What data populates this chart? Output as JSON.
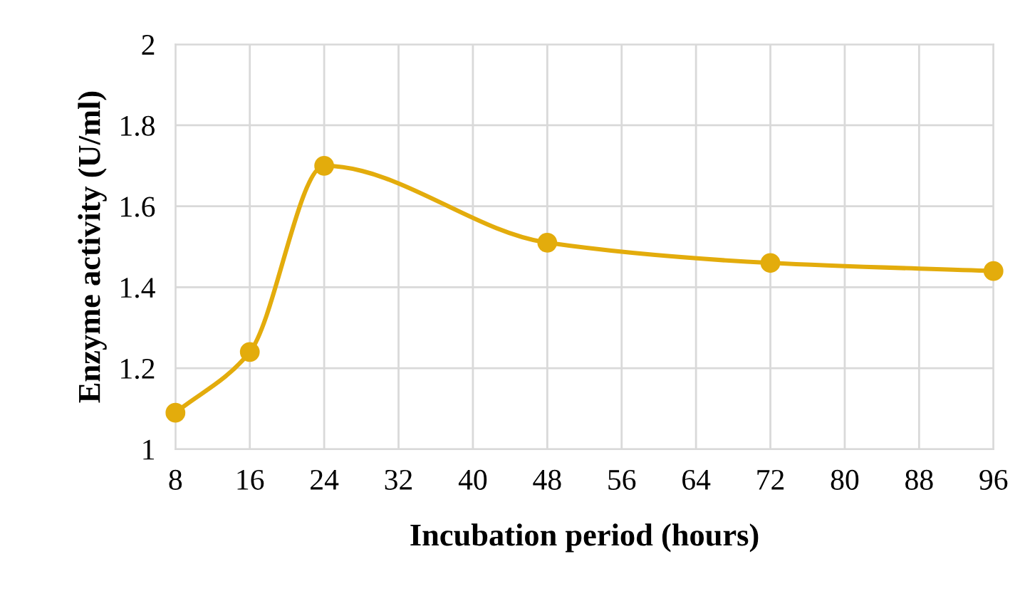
{
  "chart_data": {
    "type": "line",
    "xlabel": "Incubation period (hours)",
    "ylabel": "Enzyme activity (U/ml)",
    "x": [
      8,
      16,
      24,
      48,
      72,
      96
    ],
    "series": [
      {
        "color": "#e3ac0c",
        "values": [
          1.09,
          1.24,
          1.7,
          1.51,
          1.46,
          1.44
        ]
      }
    ],
    "xlim": [
      8,
      96
    ],
    "xticks": [
      8,
      16,
      24,
      32,
      40,
      48,
      56,
      64,
      72,
      80,
      88,
      96
    ],
    "ylim": [
      1,
      2
    ],
    "yticks": [
      1,
      1.2,
      1.4,
      1.6,
      1.8,
      2
    ],
    "grid": true,
    "marker": "circle",
    "line_style": "solid"
  }
}
